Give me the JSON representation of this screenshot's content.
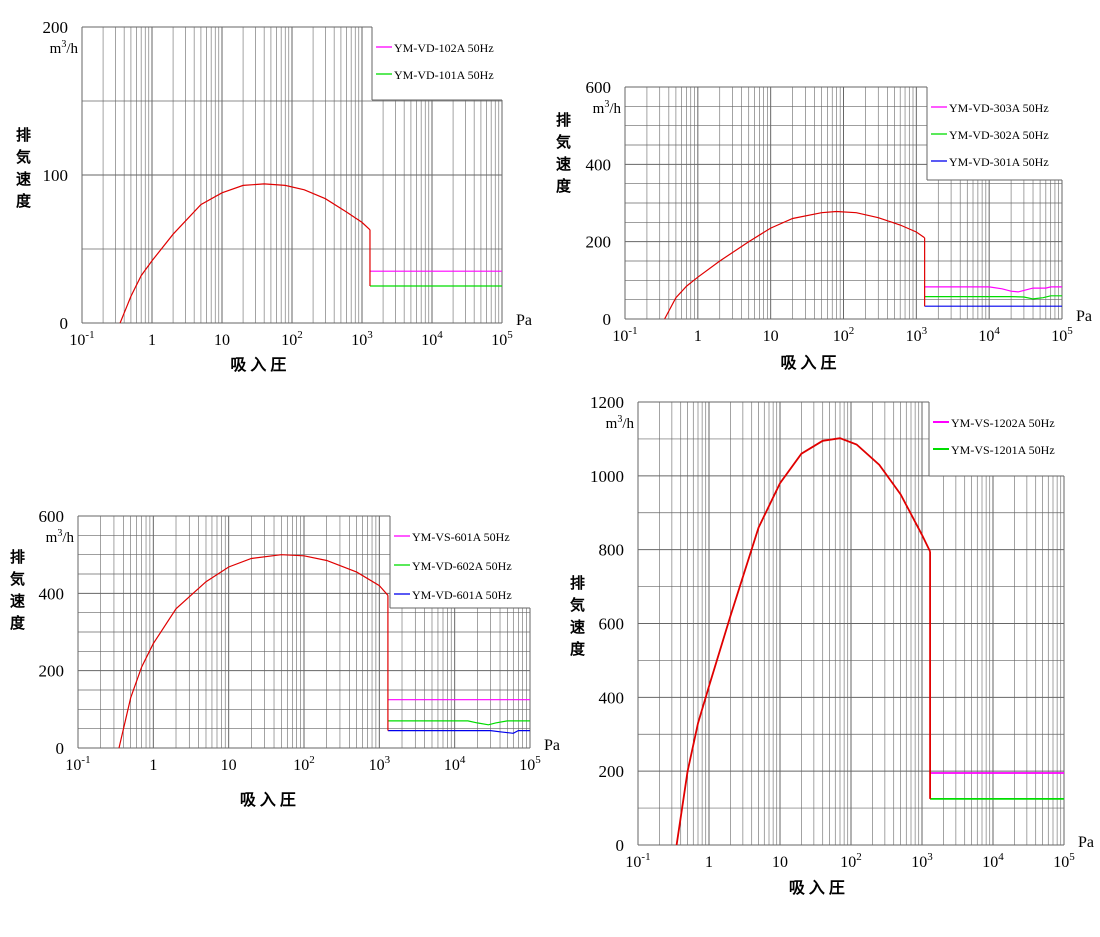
{
  "colors": {
    "grid": "#666666",
    "curve": "#e00000",
    "magenta": "#ff00ff",
    "green": "#00dd00",
    "blue": "#0000ee"
  },
  "chart_data": [
    {
      "type": "line",
      "xscale": "log",
      "xlim": [
        0.1,
        100000
      ],
      "ylim": [
        0,
        200
      ],
      "x_ticks": [
        "10-1",
        "1",
        "10",
        "102",
        "103",
        "104",
        "105"
      ],
      "y_ticks": [
        "0",
        "100",
        "200"
      ],
      "y_unit": "m3/h",
      "xunit": "Pa",
      "xlabel": "吸 入 圧",
      "ylabel": "排 気 速 度",
      "series": [
        {
          "color": "#e00000",
          "points": [
            [
              0.35,
              0
            ],
            [
              0.5,
              18
            ],
            [
              0.7,
              32
            ],
            [
              1,
              42
            ],
            [
              2,
              60
            ],
            [
              5,
              80
            ],
            [
              10,
              88
            ],
            [
              20,
              93
            ],
            [
              40,
              94
            ],
            [
              80,
              93
            ],
            [
              150,
              90
            ],
            [
              300,
              84
            ],
            [
              600,
              75
            ],
            [
              1000,
              68
            ],
            [
              1300,
              63
            ]
          ]
        },
        {
          "name": "YM-VD-102A 50Hz",
          "color": "#ff00ff",
          "points": [
            [
              1300,
              35
            ],
            [
              100000,
              35
            ]
          ]
        },
        {
          "name": "YM-VD-101A 50Hz",
          "color": "#00dd00",
          "points": [
            [
              1300,
              25
            ],
            [
              100000,
              25
            ]
          ]
        }
      ],
      "connector": [
        [
          1300,
          63
        ],
        [
          1300,
          25
        ]
      ]
    },
    {
      "type": "line",
      "xscale": "log",
      "xlim": [
        0.1,
        100000
      ],
      "ylim": [
        0,
        600
      ],
      "x_ticks": [
        "10-1",
        "1",
        "10",
        "102",
        "103",
        "104",
        "105"
      ],
      "y_ticks": [
        "0",
        "200",
        "400",
        "600"
      ],
      "y_unit": "m3/h",
      "xunit": "Pa",
      "xlabel": "吸 入 圧",
      "ylabel": "排 気 速 度",
      "series": [
        {
          "color": "#e00000",
          "points": [
            [
              0.35,
              0
            ],
            [
              0.5,
              55
            ],
            [
              0.7,
              85
            ],
            [
              1,
              108
            ],
            [
              2,
              150
            ],
            [
              5,
              200
            ],
            [
              10,
              235
            ],
            [
              20,
              260
            ],
            [
              50,
              275
            ],
            [
              80,
              278
            ],
            [
              150,
              275
            ],
            [
              300,
              262
            ],
            [
              600,
              243
            ],
            [
              1000,
              225
            ],
            [
              1300,
              210
            ]
          ]
        },
        {
          "name": "YM-VD-303A 50Hz",
          "color": "#ff00ff",
          "points": [
            [
              1300,
              83
            ],
            [
              10000,
              83
            ],
            [
              15000,
              78
            ],
            [
              20000,
              72
            ],
            [
              25000,
              70
            ],
            [
              30000,
              74
            ],
            [
              40000,
              80
            ],
            [
              60000,
              80
            ],
            [
              70000,
              83
            ],
            [
              100000,
              83
            ]
          ]
        },
        {
          "name": "YM-VD-302A 50Hz",
          "color": "#00dd00",
          "points": [
            [
              1300,
              58
            ],
            [
              20000,
              58
            ],
            [
              30000,
              57
            ],
            [
              40000,
              52
            ],
            [
              55000,
              55
            ],
            [
              70000,
              60
            ],
            [
              100000,
              60
            ]
          ]
        },
        {
          "name": "YM-VD-301A 50Hz",
          "color": "#0000ee",
          "points": [
            [
              1300,
              33
            ],
            [
              100000,
              33
            ]
          ]
        }
      ],
      "connector": [
        [
          1300,
          210
        ],
        [
          1300,
          33
        ]
      ]
    },
    {
      "type": "line",
      "xscale": "log",
      "xlim": [
        0.1,
        100000
      ],
      "ylim": [
        0,
        600
      ],
      "x_ticks": [
        "10-1",
        "1",
        "10",
        "102",
        "103",
        "104",
        "105"
      ],
      "y_ticks": [
        "0",
        "200",
        "400",
        "600"
      ],
      "y_unit": "m3/h",
      "xunit": "Pa",
      "xlabel": "吸 入 圧",
      "ylabel": "排 気 速 度",
      "series": [
        {
          "color": "#e00000",
          "points": [
            [
              0.35,
              0
            ],
            [
              0.5,
              130
            ],
            [
              0.7,
              210
            ],
            [
              1,
              270
            ],
            [
              2,
              360
            ],
            [
              5,
              430
            ],
            [
              10,
              468
            ],
            [
              20,
              490
            ],
            [
              50,
              500
            ],
            [
              100,
              497
            ],
            [
              200,
              485
            ],
            [
              500,
              455
            ],
            [
              1000,
              420
            ],
            [
              1300,
              395
            ]
          ]
        },
        {
          "name": "YM-VS-601A 50Hz",
          "color": "#ff00ff",
          "points": [
            [
              1300,
              125
            ],
            [
              100000,
              125
            ]
          ]
        },
        {
          "name": "YM-VD-602A 50Hz",
          "color": "#00dd00",
          "points": [
            [
              1300,
              70
            ],
            [
              15000,
              70
            ],
            [
              20000,
              65
            ],
            [
              28000,
              60
            ],
            [
              35000,
              65
            ],
            [
              50000,
              70
            ],
            [
              100000,
              70
            ]
          ]
        },
        {
          "name": "YM-VD-601A 50Hz",
          "color": "#0000ee",
          "points": [
            [
              1300,
              45
            ],
            [
              30000,
              45
            ],
            [
              40000,
              42
            ],
            [
              60000,
              38
            ],
            [
              70000,
              45
            ],
            [
              100000,
              45
            ]
          ]
        }
      ],
      "connector": [
        [
          1300,
          395
        ],
        [
          1300,
          45
        ]
      ]
    },
    {
      "type": "line",
      "xscale": "log",
      "xlim": [
        0.1,
        100000
      ],
      "ylim": [
        0,
        1200
      ],
      "x_ticks": [
        "10-1",
        "1",
        "10",
        "102",
        "103",
        "104",
        "105"
      ],
      "y_ticks": [
        "0",
        "200",
        "400",
        "600",
        "800",
        "1000",
        "1200"
      ],
      "y_unit": "m3/h",
      "xunit": "Pa",
      "xlabel": "吸 入 圧",
      "ylabel": "排 気 速 度",
      "series": [
        {
          "color": "#e00000",
          "points": [
            [
              0.35,
              0
            ],
            [
              0.5,
              200
            ],
            [
              0.7,
              330
            ],
            [
              1,
              430
            ],
            [
              2,
              620
            ],
            [
              5,
              860
            ],
            [
              10,
              980
            ],
            [
              20,
              1060
            ],
            [
              40,
              1095
            ],
            [
              70,
              1102
            ],
            [
              120,
              1085
            ],
            [
              250,
              1030
            ],
            [
              500,
              950
            ],
            [
              1000,
              840
            ],
            [
              1300,
              795
            ]
          ]
        },
        {
          "name": "YM-VS-1202A 50Hz",
          "color": "#ff00ff",
          "points": [
            [
              1300,
              195
            ],
            [
              100000,
              195
            ]
          ]
        },
        {
          "name": "YM-VS-1201A 50Hz",
          "color": "#00dd00",
          "points": [
            [
              1300,
              125
            ],
            [
              100000,
              125
            ]
          ]
        }
      ],
      "connector": [
        [
          1300,
          795
        ],
        [
          1300,
          125
        ]
      ]
    }
  ]
}
